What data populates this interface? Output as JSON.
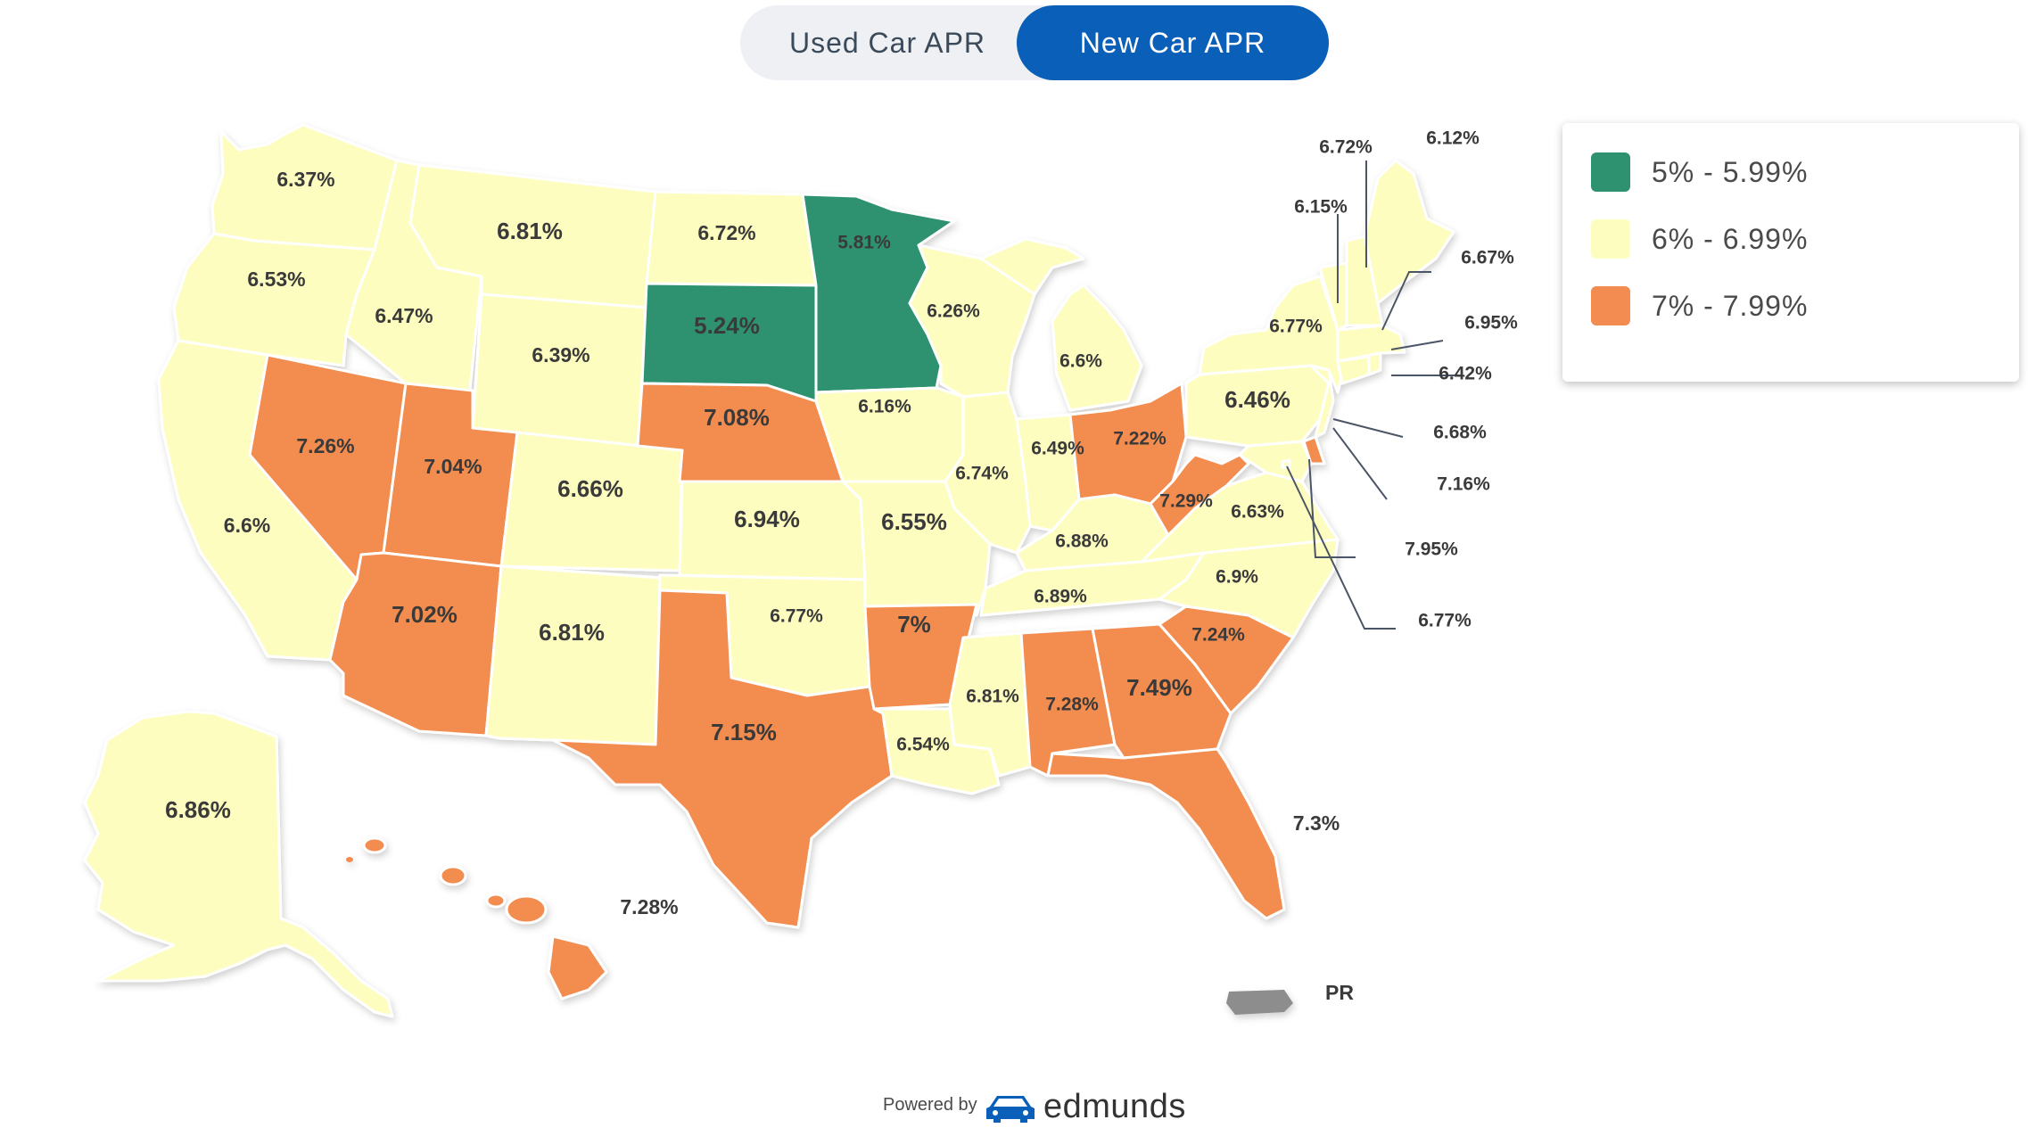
{
  "toggle": {
    "used_label": "Used Car APR",
    "new_label": "New Car APR",
    "selected": "New Car APR"
  },
  "colors": {
    "low": "#2e9271",
    "mid": "#fefdc0",
    "high": "#f28c50",
    "pr": "#8d8d8d",
    "brand_blue": "#0a5fb8"
  },
  "legend": [
    {
      "label": "5% - 5.99%",
      "color": "#2e9271"
    },
    {
      "label": "6% - 6.99%",
      "color": "#fefdc0"
    },
    {
      "label": "7% - 7.99%",
      "color": "#f28c50"
    }
  ],
  "states": {
    "WA": "6.37%",
    "OR": "6.53%",
    "CA": "6.6%",
    "NV": "7.26%",
    "ID": "6.47%",
    "MT": "6.81%",
    "WY": "6.39%",
    "UT": "7.04%",
    "AZ": "7.02%",
    "CO": "6.66%",
    "NM": "6.81%",
    "ND": "6.72%",
    "SD": "5.24%",
    "NE": "7.08%",
    "KS": "6.94%",
    "OK": "6.77%",
    "TX": "7.15%",
    "MN": "5.81%",
    "IA": "6.16%",
    "MO": "6.55%",
    "AR": "7%",
    "LA": "6.54%",
    "WI": "6.26%",
    "IL": "6.74%",
    "MS": "6.81%",
    "MI": "6.6%",
    "IN": "6.49%",
    "KY": "6.88%",
    "TN": "6.89%",
    "AL": "7.28%",
    "GA": "7.49%",
    "FL": "7.3%",
    "SC": "7.24%",
    "NC": "6.9%",
    "VA": "6.63%",
    "WV": "7.29%",
    "OH": "7.22%",
    "PA": "6.46%",
    "NY": "6.77%",
    "ME": "6.12%",
    "VT": "6.72%",
    "NH": "6.15%",
    "MA": "6.67%",
    "RI": "6.95%",
    "CT": "6.42%",
    "NJ": "6.68%",
    "DE": "7.16%",
    "MD": "7.95%",
    "DC": "6.77%",
    "AK": "6.86%",
    "HI": "7.28%"
  },
  "pr_label": "PR",
  "footer": {
    "powered_by": "Powered by",
    "brand": "edmunds"
  }
}
